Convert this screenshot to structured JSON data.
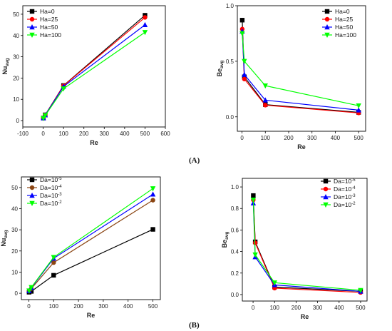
{
  "panel_labels": {
    "A": "(A)",
    "B": "(B)"
  },
  "chart_data": [
    {
      "type": "line",
      "ylabel_main": "Nu",
      "ylabel_sub": "avg",
      "xlabel": "Re",
      "xlim": [
        -100,
        600
      ],
      "ylim": [
        -3,
        54
      ],
      "xticks": [
        -100,
        0,
        100,
        200,
        300,
        400,
        500,
        600
      ],
      "yticks": [
        0,
        10,
        20,
        30,
        40,
        50
      ],
      "legend_position": "top-left",
      "series": [
        {
          "name": "Ha=0",
          "color": "#000000",
          "marker": "square",
          "x": [
            1,
            10,
            100,
            500
          ],
          "y": [
            1.2,
            2.7,
            16.5,
            49.5
          ]
        },
        {
          "name": "Ha=25",
          "color": "#ff0000",
          "marker": "circle",
          "x": [
            1,
            10,
            100,
            500
          ],
          "y": [
            1.2,
            2.7,
            16.4,
            48.5
          ]
        },
        {
          "name": "Ha=50",
          "color": "#0000ff",
          "marker": "triangle-up",
          "x": [
            1,
            10,
            100,
            500
          ],
          "y": [
            1.2,
            2.6,
            16.0,
            45.0
          ]
        },
        {
          "name": "Ha=100",
          "color": "#00ff00",
          "marker": "triangle-down",
          "x": [
            1,
            10,
            100,
            500
          ],
          "y": [
            1.1,
            2.4,
            15.0,
            41.5
          ]
        }
      ]
    },
    {
      "type": "line",
      "ylabel_main": "Be",
      "ylabel_sub": "avg",
      "xlabel": "Re",
      "xlim": [
        -20,
        530
      ],
      "ylim": [
        -0.13,
        1.0
      ],
      "xticks": [
        0,
        100,
        200,
        300,
        400,
        500
      ],
      "yticks": [
        0.0,
        0.5,
        1.0
      ],
      "ytick_labels": [
        "0.0",
        "0.5",
        "1.0"
      ],
      "legend_position": "top-right",
      "series": [
        {
          "name": "Ha=0",
          "color": "#000000",
          "marker": "square",
          "x": [
            1,
            10,
            100,
            500
          ],
          "y": [
            0.87,
            0.36,
            0.11,
            0.04
          ]
        },
        {
          "name": "Ha=25",
          "color": "#ff0000",
          "marker": "circle",
          "x": [
            1,
            10,
            100,
            500
          ],
          "y": [
            0.79,
            0.34,
            0.105,
            0.035
          ]
        },
        {
          "name": "Ha=50",
          "color": "#0000ff",
          "marker": "triangle-up",
          "x": [
            1,
            10,
            100,
            500
          ],
          "y": [
            0.77,
            0.38,
            0.15,
            0.06
          ]
        },
        {
          "name": "Ha=100",
          "color": "#00ff00",
          "marker": "triangle-down",
          "x": [
            1,
            10,
            100,
            500
          ],
          "y": [
            0.75,
            0.5,
            0.28,
            0.1
          ]
        }
      ]
    },
    {
      "type": "line",
      "ylabel_main": "Nu",
      "ylabel_sub": "avg",
      "xlabel": "Re",
      "xlim": [
        -30,
        530
      ],
      "ylim": [
        -3,
        55
      ],
      "xticks": [
        0,
        100,
        200,
        300,
        400,
        500
      ],
      "yticks": [
        0,
        10,
        20,
        30,
        40,
        50
      ],
      "legend_position": "top-left",
      "series": [
        {
          "name": "Da=10^-5",
          "name_base": "Da=10",
          "name_exp": "-5",
          "color": "#000000",
          "marker": "square",
          "x": [
            1,
            10,
            100,
            500
          ],
          "y": [
            0.5,
            0.9,
            8.5,
            30.2
          ]
        },
        {
          "name": "Da=10^-4",
          "name_base": "Da=10",
          "name_exp": "-4",
          "color": "#8b4513",
          "marker": "circle",
          "x": [
            1,
            10,
            100,
            500
          ],
          "y": [
            1.0,
            2.2,
            14.5,
            44.0
          ]
        },
        {
          "name": "Da=10^-3",
          "name_base": "Da=10",
          "name_exp": "-3",
          "color": "#0000ff",
          "marker": "triangle-up",
          "x": [
            1,
            10,
            100,
            500
          ],
          "y": [
            1.1,
            2.6,
            16.5,
            46.8
          ]
        },
        {
          "name": "Da=10^-2",
          "name_base": "Da=10",
          "name_exp": "-2",
          "color": "#00ff00",
          "marker": "triangle-down",
          "x": [
            1,
            10,
            100,
            500
          ],
          "y": [
            1.2,
            2.8,
            17.0,
            49.5
          ]
        }
      ]
    },
    {
      "type": "line",
      "ylabel_main": "Be",
      "ylabel_sub": "avg",
      "xlabel": "Re",
      "xlim": [
        -50,
        530
      ],
      "ylim": [
        -0.06,
        1.08
      ],
      "xticks": [
        0,
        100,
        200,
        300,
        400,
        500
      ],
      "yticks": [
        0.0,
        0.2,
        0.4,
        0.6,
        0.8,
        1.0
      ],
      "ytick_labels": [
        "0.0",
        "0.2",
        "0.4",
        "0.6",
        "0.8",
        "1.0"
      ],
      "legend_position": "top-right",
      "series": [
        {
          "name": "Da=10^-5",
          "name_base": "Da=10",
          "name_exp": "-5",
          "color": "#000000",
          "marker": "square",
          "x": [
            1,
            10,
            100,
            500
          ],
          "y": [
            0.92,
            0.49,
            0.07,
            0.03
          ]
        },
        {
          "name": "Da=10^-4",
          "name_base": "Da=10",
          "name_exp": "-4",
          "color": "#ff0000",
          "marker": "circle",
          "x": [
            1,
            10,
            100,
            500
          ],
          "y": [
            0.88,
            0.48,
            0.06,
            0.02
          ]
        },
        {
          "name": "Da=10^-3",
          "name_base": "Da=10",
          "name_exp": "-3",
          "color": "#0000ff",
          "marker": "triangle-up",
          "x": [
            1,
            10,
            100,
            500
          ],
          "y": [
            0.85,
            0.35,
            0.09,
            0.03
          ]
        },
        {
          "name": "Da=10^-2",
          "name_base": "Da=10",
          "name_exp": "-2",
          "color": "#00ff00",
          "marker": "triangle-down",
          "x": [
            1,
            10,
            100,
            500
          ],
          "y": [
            0.88,
            0.37,
            0.11,
            0.04
          ]
        }
      ]
    }
  ]
}
